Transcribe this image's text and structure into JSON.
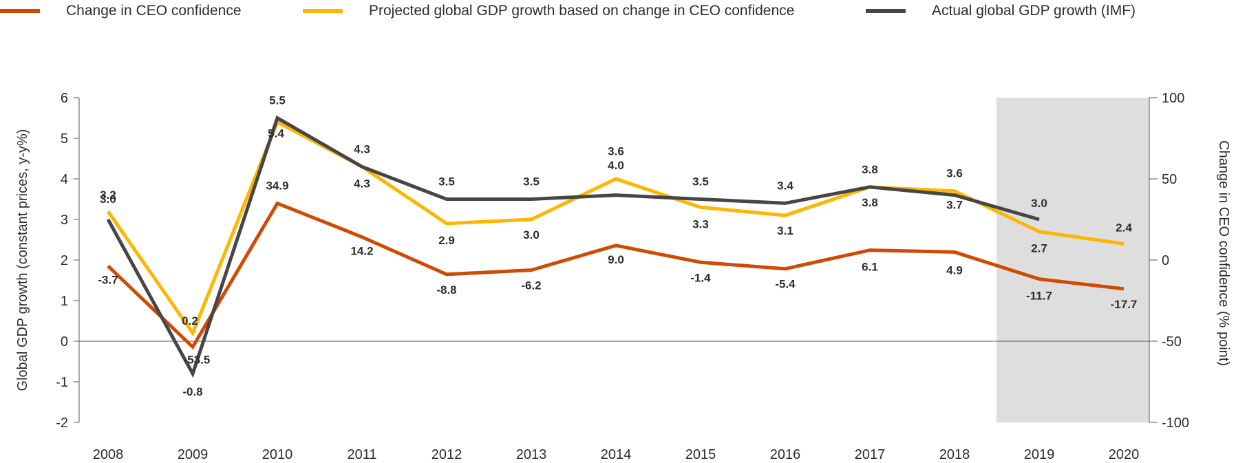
{
  "colors": {
    "ceo": "#d04a02",
    "projected": "#ffb600",
    "actual": "#464646",
    "shade": "#dedede",
    "axis": "#555555"
  },
  "legend": [
    {
      "key": "ceo",
      "label": "Change in CEO confidence"
    },
    {
      "key": "projected",
      "label": "Projected global GDP growth based on change in CEO confidence"
    },
    {
      "key": "actual",
      "label": "Actual global GDP growth (IMF)"
    }
  ],
  "chart_data": {
    "type": "line",
    "categories": [
      "2008",
      "2009",
      "2010",
      "2011",
      "2012",
      "2013",
      "2014",
      "2015",
      "2016",
      "2017",
      "2018",
      "2019",
      "2020"
    ],
    "ylabel": "Global GDP growth (constant prices, y-y%)",
    "ylabel_right": "Change in CEO confidence (% point)",
    "ylim": [
      -2,
      6
    ],
    "yticks": [
      "6",
      "5",
      "4",
      "3",
      "2",
      "1",
      "0",
      "-1",
      "-2"
    ],
    "ylim_right": [
      -100,
      100
    ],
    "yticks_right": [
      "100",
      "50",
      "0",
      "-50",
      "-100"
    ],
    "shaded_categories": [
      "2019",
      "2020"
    ],
    "series": [
      {
        "name": "Change in CEO confidence",
        "key": "ceo",
        "axis": "right",
        "values": [
          -3.7,
          -53.5,
          34.9,
          14.2,
          -8.8,
          -6.2,
          9.0,
          -1.4,
          -5.4,
          6.1,
          4.9,
          -11.7,
          -17.7
        ],
        "labels": [
          "-3.7",
          "-53.5",
          "34.9",
          "14.2",
          "-8.8",
          "-6.2",
          "9.0",
          "-1.4",
          "-5.4",
          "6.1",
          "4.9",
          "-11.7",
          "-17.7"
        ]
      },
      {
        "name": "Projected global GDP growth based on change in CEO confidence",
        "key": "projected",
        "axis": "left",
        "values": [
          3.2,
          0.2,
          5.4,
          4.3,
          2.9,
          3.0,
          4.0,
          3.3,
          3.1,
          3.8,
          3.7,
          2.7,
          2.4
        ],
        "labels": [
          "3.2",
          "0.2",
          "5.4",
          "4.3",
          "2.9",
          "3.0",
          "4.0",
          "3.3",
          "3.1",
          "3.8",
          "3.7",
          "2.7",
          "2.4"
        ]
      },
      {
        "name": "Actual global GDP growth (IMF)",
        "key": "actual",
        "axis": "left",
        "values": [
          3.0,
          -0.8,
          5.5,
          4.3,
          3.5,
          3.5,
          3.6,
          3.5,
          3.4,
          3.8,
          3.6,
          3.0,
          null
        ],
        "labels": [
          "3.0",
          "-0.8",
          "5.5",
          "4.3",
          "3.5",
          "3.5",
          "3.6",
          "3.5",
          "3.4",
          "3.8",
          "3.6",
          "3.0",
          ""
        ]
      }
    ]
  }
}
